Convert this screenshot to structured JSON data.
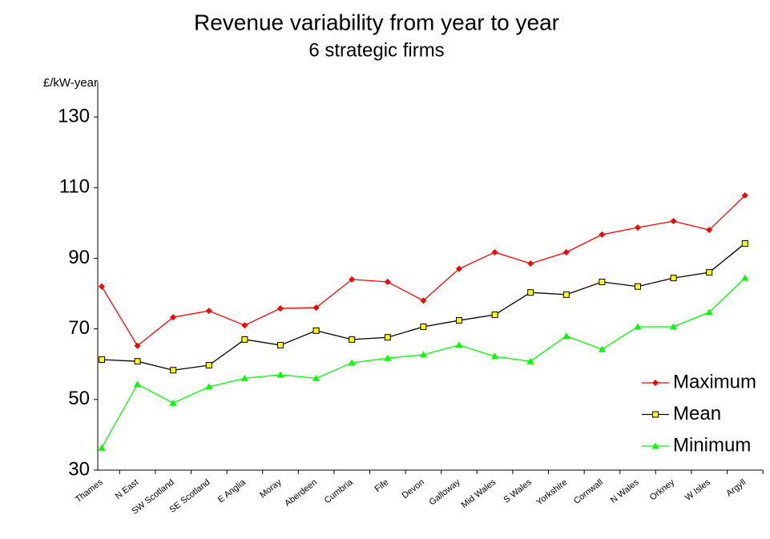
{
  "chart_data": {
    "type": "line",
    "title": "Revenue variability from year to year",
    "subtitle": "6 strategic firms",
    "y_label": "£/kW-year",
    "categories": [
      "Thames",
      "N East",
      "SW Scotland",
      "SE Scotland",
      "E Anglia",
      "Moray",
      "Aberdeen",
      "Cumbria",
      "Fife",
      "Devon",
      "Galloway",
      "Mid Wales",
      "S Wales",
      "Yorkshire",
      "Cornwall",
      "N Wales",
      "Orkney",
      "W Isles",
      "Argyll"
    ],
    "series": [
      {
        "name": "Maximum",
        "color": "#ff0000",
        "marker": "diamond",
        "marker_color": "#ff0000",
        "values": [
          82,
          65.2,
          73.3,
          75.1,
          71,
          75.8,
          76,
          84,
          83.3,
          78,
          87,
          91.7,
          88.5,
          91.7,
          96.7,
          98.7,
          100.5,
          98,
          107.8
        ]
      },
      {
        "name": "Mean",
        "color": "#000000",
        "marker": "square",
        "marker_color": "#ffff00",
        "values": [
          61.3,
          60.8,
          58.3,
          59.7,
          67,
          65.4,
          69.5,
          67,
          67.6,
          70.6,
          72.4,
          74,
          80.3,
          79.7,
          83.3,
          82,
          84.4,
          86,
          94.2
        ]
      },
      {
        "name": "Minimum",
        "color": "#00ff00",
        "marker": "triangle",
        "marker_color": "#00ff00",
        "values": [
          36.3,
          54.3,
          49,
          53.6,
          56,
          57,
          56,
          60.4,
          61.7,
          62.7,
          65.4,
          62.2,
          60.8,
          68,
          64.2,
          70.6,
          70.6,
          74.7,
          84.4
        ]
      }
    ],
    "ylim": [
      30,
      140
    ],
    "yticks": [
      30,
      50,
      70,
      90,
      110,
      130
    ],
    "grid": false,
    "legend": "lower right"
  }
}
